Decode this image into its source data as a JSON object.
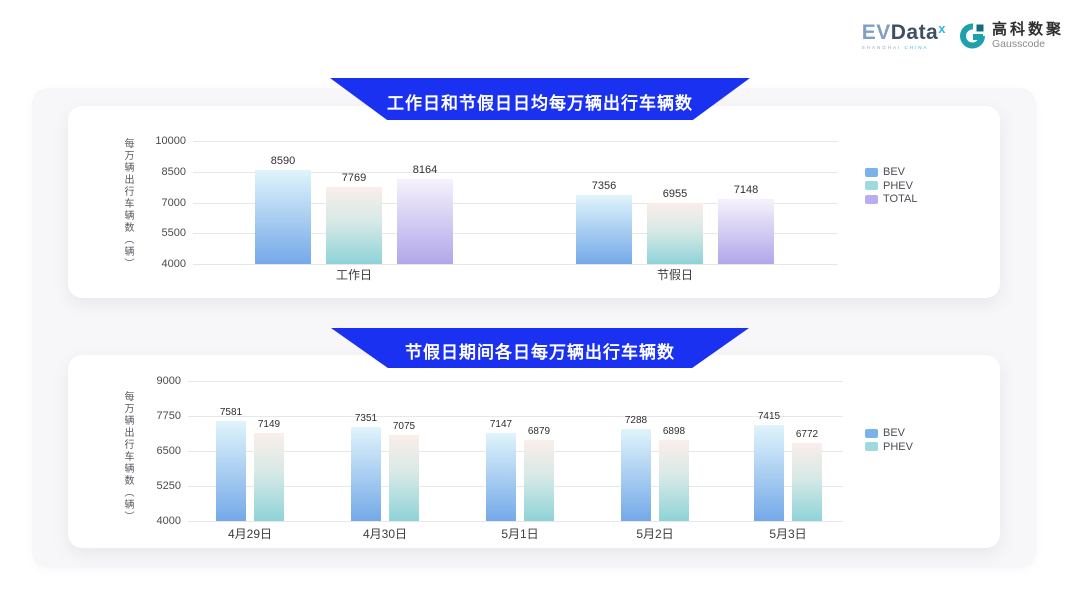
{
  "logo": {
    "evdata_prefix": "EV",
    "evdata_suffix": "Data",
    "evdata_sup": "x",
    "evdata_sub_gray": "SHANGHAI",
    "evdata_sub_cyan": "CHINA",
    "gausscode_cn": "高科数聚",
    "gausscode_en": "Gausscode",
    "gausscode_icon_color": "#1ea0ae",
    "gausscode_icon_dark": "#0f6d7e"
  },
  "colors": {
    "banner_blue": "#1b31f2",
    "board_bg": "#f7f7f9",
    "gridline": "#e6e7ea"
  },
  "chart_data": [
    {
      "type": "bar",
      "title": "工作日和节假日日均每万辆出行车辆数",
      "ylabel": "每万辆出行车辆数（辆）",
      "ymin": 4000,
      "ymax": 10000,
      "yticks": [
        10000,
        8500,
        7000,
        5500,
        4000
      ],
      "grid": true,
      "legend_position": "right",
      "categories": [
        "工作日",
        "节假日"
      ],
      "series": [
        {
          "name": "BEV",
          "values": [
            8590,
            7356
          ],
          "gradient": [
            "#e0f4fb 0%",
            "#74a9e8 100%"
          ],
          "legend_color": "#7ab2ea"
        },
        {
          "name": "PHEV",
          "values": [
            7769,
            6955
          ],
          "gradient": [
            "#faeeea 0%",
            "#d7e9e6 45%",
            "#8ed3d8 100%"
          ],
          "legend_color": "#9ed9de"
        },
        {
          "name": "TOTAL",
          "values": [
            8164,
            7148
          ],
          "gradient": [
            "#f6f2fc 0%",
            "#b1a7ea 100%"
          ],
          "legend_color": "#b8aeef"
        }
      ]
    },
    {
      "type": "bar",
      "title": "节假日期间各日每万辆出行车辆数",
      "ylabel": "每万辆出行车辆数（辆）",
      "ymin": 4000,
      "ymax": 9000,
      "yticks": [
        9000,
        7750,
        6500,
        5250,
        4000
      ],
      "grid": true,
      "legend_position": "right",
      "categories": [
        "4月29日",
        "4月30日",
        "5月1日",
        "5月2日",
        "5月3日"
      ],
      "series": [
        {
          "name": "BEV",
          "values": [
            7581,
            7351,
            7147,
            7288,
            7415
          ],
          "gradient": [
            "#e0f4fb 0%",
            "#74a9e8 100%"
          ],
          "legend_color": "#7ab2ea"
        },
        {
          "name": "PHEV",
          "values": [
            7149,
            7075,
            6879,
            6898,
            6772
          ],
          "gradient": [
            "#faeeea 0%",
            "#d7e9e6 45%",
            "#8ed3d8 100%"
          ],
          "legend_color": "#9ed9de"
        }
      ]
    }
  ]
}
